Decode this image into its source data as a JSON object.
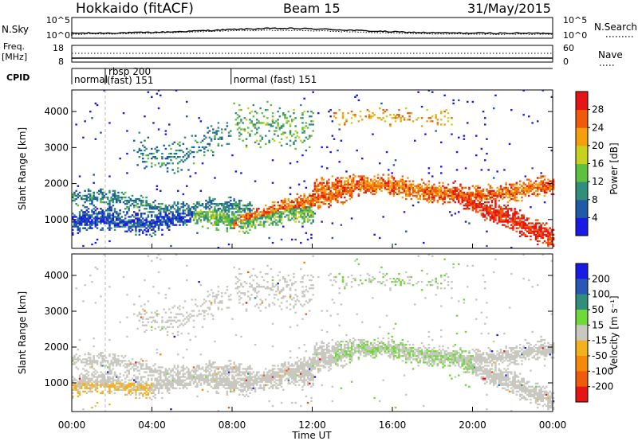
{
  "header": {
    "station": "Hokkaido (fitACF)",
    "beam": "Beam 15",
    "date": "31/May/2015"
  },
  "status_panels": {
    "nsky": {
      "label": "N.Sky",
      "tick_labels": [
        "10^5",
        "10^0"
      ],
      "right_label": "N.Search",
      "right_tick_labels": [
        "10^5",
        "10^0"
      ]
    },
    "freq": {
      "label_line1": "Freq.",
      "label_line2": "[MHz]",
      "tick_labels": [
        "18",
        "8"
      ],
      "right_label": "Nave",
      "right_tick_labels": [
        "60",
        "0"
      ]
    },
    "cpid": {
      "label": "CPID",
      "segments": [
        {
          "start_ut": 0.0,
          "text": "normal"
        },
        {
          "start_ut": 1.67,
          "text": "rbsp 200",
          "text2": "(fast) 151"
        },
        {
          "start_ut": 7.95,
          "text": "normal (fast) 151"
        }
      ]
    }
  },
  "chart_data": [
    {
      "type": "heatmap",
      "name": "power",
      "ylabel": "Slant Range [km]",
      "xlabel": "",
      "ylim": [
        200,
        4600
      ],
      "xlim_hours": [
        0,
        24
      ],
      "yticks": [
        1000,
        2000,
        3000,
        4000
      ],
      "colorbar": {
        "label": "Power [dB]",
        "ticks": [
          4,
          8,
          12,
          16,
          20,
          24,
          28
        ],
        "range": [
          0,
          32
        ],
        "colors": [
          "#1a1ae6",
          "#1e5aa8",
          "#2f8f7a",
          "#5fbf3f",
          "#c8d21e",
          "#f5a00a",
          "#f05a0a",
          "#e61414"
        ]
      }
    },
    {
      "type": "heatmap",
      "name": "velocity",
      "ylabel": "Slant Range [km]",
      "xlabel": "Time UT",
      "ylim": [
        200,
        4600
      ],
      "xlim_hours": [
        0,
        24
      ],
      "yticks": [
        1000,
        2000,
        3000,
        4000
      ],
      "xticks": [
        "00:00",
        "04:00",
        "08:00",
        "12:00",
        "16:00",
        "20:00",
        "00:00"
      ],
      "colorbar": {
        "label": "Velocity [m s⁻¹]",
        "ticks": [
          200,
          100,
          50,
          15,
          -15,
          -50,
          -100,
          -200
        ],
        "colors": [
          "#1a1ae6",
          "#2a56b8",
          "#2f8f7a",
          "#6fd83a",
          "#c8c8c0",
          "#f2b21e",
          "#f58a0a",
          "#f05a0a",
          "#e61414"
        ]
      }
    }
  ]
}
